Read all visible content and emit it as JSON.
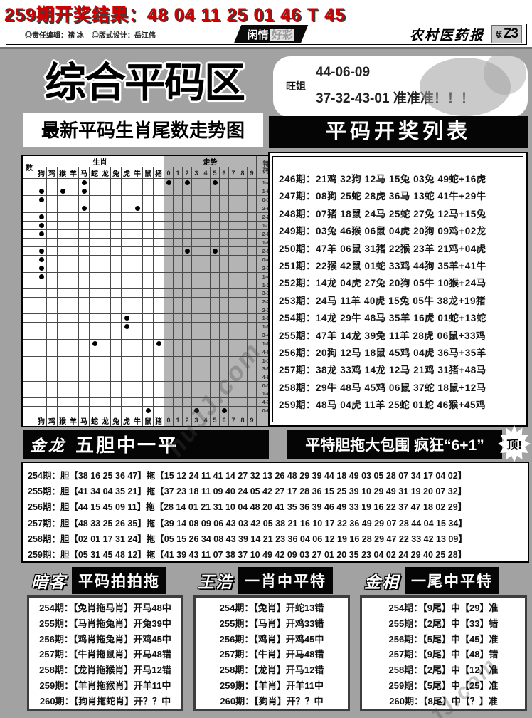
{
  "colors": {
    "headline_red": "#d40000",
    "page_gray": "#a2a2a2",
    "trend_gray": "#b4b4b4",
    "panel_black": "#050505"
  },
  "header": {
    "result_line": "259期开奖结果：48 04 11 25 01 46 T 45"
  },
  "masthead": {
    "editor": "◎责任编辑：褚 冰",
    "designer": "◎版式设计：岳江伟",
    "center_left": "闲情",
    "center_right": "好彩",
    "paper_name": "农村医药报",
    "edition_prefix": "版",
    "edition": "Z3"
  },
  "promo": {
    "section_title": "综合平码区",
    "tip_name": "旺姐",
    "tip_line1": "44-06-09",
    "tip_line2": "37-32-43-01 准准准！！！",
    "chart_title": "最新平码生肖尾数走势图",
    "list_title": "平码开奖列表"
  },
  "chart": {
    "corner_label": "数",
    "zodiac_group_label": "生肖",
    "trend_group_label": "走势",
    "special_label": "特码",
    "zodiac_cols": [
      "狗",
      "鸡",
      "猴",
      "羊",
      "马",
      "蛇",
      "龙",
      "兔",
      "虎",
      "牛",
      "鼠",
      "猪"
    ],
    "trend_cols": [
      "0",
      "1",
      "2",
      "3",
      "4",
      "5",
      "6",
      "7",
      "8",
      "9"
    ],
    "rows": [
      {
        "label": "1-4",
        "zodiac": [
          4
        ],
        "tails": [
          0,
          2,
          5
        ]
      },
      {
        "label": "1-6",
        "zodiac": [
          0,
          2,
          4
        ],
        "tails": []
      },
      {
        "label": "0-1",
        "zodiac": [
          0
        ],
        "tails": []
      },
      {
        "label": "2-9",
        "zodiac": [
          4,
          9
        ],
        "tails": []
      },
      {
        "label": "2-2",
        "zodiac": [
          0
        ],
        "tails": []
      },
      {
        "label": "1-1",
        "zodiac": [
          0
        ],
        "tails": []
      },
      {
        "label": "2-6",
        "zodiac": [
          0
        ],
        "tails": []
      },
      {
        "label": "1-9",
        "zodiac": [],
        "tails": []
      },
      {
        "label": "2-5",
        "zodiac": [
          0
        ],
        "tails": [
          2,
          5
        ]
      },
      {
        "label": "0-4",
        "zodiac": [
          0
        ],
        "tails": []
      },
      {
        "label": "2-7",
        "zodiac": [
          0
        ],
        "tails": []
      },
      {
        "label": "1-4",
        "zodiac": [
          0
        ],
        "tails": []
      },
      {
        "label": "1-2",
        "zodiac": [],
        "tails": []
      },
      {
        "label": "3-1",
        "zodiac": [],
        "tails": []
      },
      {
        "label": "2-2",
        "zodiac": [],
        "tails": []
      },
      {
        "label": "2-3",
        "zodiac": [],
        "tails": []
      },
      {
        "label": "1-9",
        "zodiac": [
          8
        ],
        "tails": []
      },
      {
        "label": "1-5",
        "zodiac": [
          8
        ],
        "tails": []
      },
      {
        "label": "3-4",
        "zodiac": [],
        "tails": []
      },
      {
        "label": "1-0",
        "zodiac": [
          5,
          11
        ],
        "tails": []
      },
      {
        "label": "4-0",
        "zodiac": [],
        "tails": []
      },
      {
        "label": "1-1",
        "zodiac": [],
        "tails": []
      },
      {
        "label": "3-5",
        "zodiac": [],
        "tails": []
      },
      {
        "label": "4-9",
        "zodiac": [],
        "tails": []
      },
      {
        "label": "0-3",
        "zodiac": [],
        "tails": []
      },
      {
        "label": "1-4",
        "zodiac": [],
        "tails": []
      },
      {
        "label": "4-7",
        "zodiac": [],
        "tails": []
      },
      {
        "label": "0-6",
        "zodiac": [
          10
        ],
        "tails": [
          3,
          6
        ]
      }
    ]
  },
  "results": {
    "rows": [
      "246期：21鸡 32狗 12马 15兔 03兔 49蛇+16虎",
      "247期：08狗 25蛇 28虎 36马 13蛇 41牛+29牛",
      "248期：07猪 18鼠 24马 25蛇 27兔 12马+15兔",
      "249期：03兔 46猴 06鼠 04虎 20狗 09鸡+02龙",
      "250期：47羊 06鼠 31猪 22猴 23羊 21鸡+04虎",
      "251期：22猴 42鼠 01蛇 33鸡 44狗 35羊+41牛",
      "252期：14龙 04虎 27兔 20狗 05牛 10猴+24马",
      "253期：24马 11羊 40虎 15兔 05牛 38龙+19猪",
      "254期：14龙 29牛 48马 35羊 16虎 01蛇+13蛇",
      "255期：47羊 14龙 39兔 11羊 28虎 06鼠+33鸡",
      "256期：20狗 12马 18鼠 45鸡 04虎 36马+35羊",
      "257期：38龙 33鸡 14龙 12马 21鸡 31猪+48马",
      "258期：29牛 48马 45鸡 06鼠 37蛇 18鼠+12马",
      "259期：48马 04虎 11羊 25蛇 01蛇 46猴+45鸡"
    ]
  },
  "banner": {
    "author": "金龙",
    "slogan1": "五胆中一平",
    "slogan2": "平特胆拖大包围 疯狂“6+1”",
    "burst": "顶!"
  },
  "dantuo": {
    "rows": [
      "254期：胆【38 16 25 36 47】拖【15 12 24 11 41 14 27 32 13 26 48 29 39 44 18 49 03 05 28 07 34 17 04 02】",
      "255期：胆【41 34 04 35 21】拖【37 23 18 11 09 40 24 05 42 27 17 28 36 15 25 39 10 29 49 31 19 20 07 32】",
      "256期：胆【44 15 45 09 11】拖【28 14 01 21 31 10 04 48 20 41 35 36 39 46 49 33 19 16 22 37 47 18 02 29】",
      "257期：胆【48 33 25 26 35】拖【39 14 08 09 06 43 03 42 05 38 21 16 10 17 32 36 49 29 07 28 44 04 15 34】",
      "258期：胆【02 01 17 31 24】拖【05 15 26 34 08 43 39 14 21 23 36 04 06 12 19 16 28 29 47 22 33 42 13 09】",
      "259期：胆【05 31 45 48 12】拖【41 39 43 11 07 38 37 10 49 42 09 03 27 01 20 35 23 04 02 24 29 40 25 28】"
    ]
  },
  "panels": [
    {
      "author": "暗客",
      "title": "平码拍拍拖",
      "rows": [
        "254期：【兔肖拖马肖】开马48中",
        "255期：【马肖拖兔肖】开兔39中",
        "256期：【鸡肖拖兔肖】开鸡45中",
        "257期：【牛肖拖鼠肖】开马48错",
        "258期：【龙肖拖猴肖】开马12错",
        "259期：【羊肖拖猴肖】开羊11中",
        "260期：【狗肖拖蛇肖】开？？中"
      ]
    },
    {
      "author": "王浩",
      "title": "一肖中平特",
      "rows": [
        "254期：【兔肖】开蛇13错",
        "255期：【马肖】开鸡33错",
        "256期：【鸡肖】开鸡45中",
        "257期：【牛肖】开马48错",
        "258期：【龙肖】开马12错",
        "259期：【羊肖】开羊11中",
        "260期：【狗肖】开？？中"
      ]
    },
    {
      "author": "金相",
      "title": "一尾中平特",
      "rows": [
        "254期：【9尾】中【29】准",
        "255期：【2尾】中【33】错",
        "256期：【5尾】中【45】准",
        "257期：【9尾】中【48】错",
        "258期：【2尾】中【12】准",
        "259期：【5尾】中【25】准",
        "260期：【8尾】中【？】准"
      ]
    }
  ],
  "watermark": "huJJ.com"
}
